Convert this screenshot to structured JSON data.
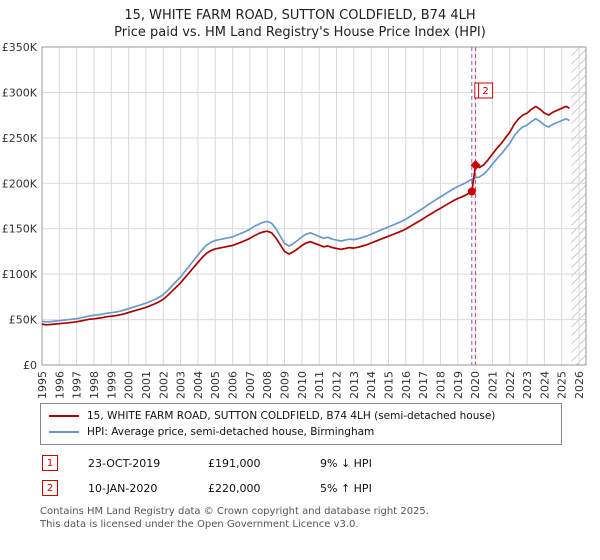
{
  "title": "15, WHITE FARM ROAD, SUTTON COLDFIELD, B74 4LH",
  "subtitle": "Price paid vs. HM Land Registry's House Price Index (HPI)",
  "legend": {
    "property": "15, WHITE FARM ROAD, SUTTON COLDFIELD, B74 4LH (semi-detached house)",
    "hpi": "HPI: Average price, semi-detached house, Birmingham"
  },
  "transactions": [
    {
      "num": "1",
      "date": "23-OCT-2019",
      "price": "£191,000",
      "hpi": "9% ↓ HPI"
    },
    {
      "num": "2",
      "date": "10-JAN-2020",
      "price": "£220,000",
      "hpi": "5% ↑ HPI"
    }
  ],
  "footer": {
    "line1": "Contains HM Land Registry data © Crown copyright and database right 2025.",
    "line2": "This data is licensed under the Open Government Licence v3.0."
  },
  "chart_data": {
    "type": "line",
    "title": "Price paid vs. HM Land Registry's House Price Index (HPI)",
    "units": "y values stored in GBP thousands",
    "xlim": [
      1995,
      2026.4
    ],
    "ylim": [
      0,
      350000
    ],
    "grid": true,
    "legend_position": "bottom",
    "hatch_start": 2025.55,
    "marker_color": "#cc0000",
    "x_ticks": [
      1995,
      1996,
      1997,
      1998,
      1999,
      2000,
      2001,
      2002,
      2003,
      2004,
      2005,
      2006,
      2007,
      2008,
      2009,
      2010,
      2011,
      2012,
      2013,
      2014,
      2015,
      2016,
      2017,
      2018,
      2019,
      2020,
      2021,
      2022,
      2023,
      2024,
      2025,
      2026
    ],
    "y_ticks": [
      {
        "value": 0,
        "label": "£0"
      },
      {
        "value": 50,
        "label": "£50K"
      },
      {
        "value": 100,
        "label": "£100K"
      },
      {
        "value": 150,
        "label": "£150K"
      },
      {
        "value": 200,
        "label": "£200K"
      },
      {
        "value": 250,
        "label": "£250K"
      },
      {
        "value": 300,
        "label": "£300K"
      },
      {
        "value": 350,
        "label": "£350K"
      }
    ],
    "markers": [
      {
        "label": "1",
        "x": 2019.81,
        "y": 191,
        "shape": "circle",
        "line_color": "#6666cc"
      },
      {
        "label": "2",
        "x": 2020.03,
        "y": 220,
        "shape": "diamond",
        "line_color": "#cc4466"
      }
    ],
    "series": [
      {
        "name": "HPI: Average price, semi-detached house, Birmingham",
        "color": "#6699cc",
        "points": [
          [
            1995,
            48
          ],
          [
            1995.25,
            47.5
          ],
          [
            1995.5,
            47.8
          ],
          [
            1995.75,
            48.3
          ],
          [
            1996,
            48.8
          ],
          [
            1996.25,
            49.3
          ],
          [
            1996.5,
            49.9
          ],
          [
            1996.75,
            50.4
          ],
          [
            1997,
            51
          ],
          [
            1997.25,
            52
          ],
          [
            1997.5,
            53
          ],
          [
            1997.75,
            54
          ],
          [
            1998,
            54.6
          ],
          [
            1998.25,
            55.2
          ],
          [
            1998.5,
            56
          ],
          [
            1998.75,
            57
          ],
          [
            1999,
            57.6
          ],
          [
            1999.25,
            58.2
          ],
          [
            1999.5,
            59.2
          ],
          [
            1999.75,
            60.5
          ],
          [
            2000,
            62
          ],
          [
            2000.25,
            63.5
          ],
          [
            2000.5,
            65
          ],
          [
            2000.75,
            66.5
          ],
          [
            2001,
            68
          ],
          [
            2001.25,
            70
          ],
          [
            2001.5,
            72
          ],
          [
            2001.75,
            74.5
          ],
          [
            2002,
            77.5
          ],
          [
            2002.25,
            82
          ],
          [
            2002.5,
            87
          ],
          [
            2002.75,
            92
          ],
          [
            2003,
            97
          ],
          [
            2003.25,
            103
          ],
          [
            2003.5,
            109
          ],
          [
            2003.75,
            115
          ],
          [
            2004,
            121
          ],
          [
            2004.25,
            127
          ],
          [
            2004.5,
            132
          ],
          [
            2004.75,
            135
          ],
          [
            2005,
            137
          ],
          [
            2005.25,
            138
          ],
          [
            2005.5,
            139
          ],
          [
            2005.75,
            140
          ],
          [
            2006,
            141
          ],
          [
            2006.25,
            143
          ],
          [
            2006.5,
            145
          ],
          [
            2006.75,
            147
          ],
          [
            2007,
            149.5
          ],
          [
            2007.25,
            152.5
          ],
          [
            2007.5,
            155
          ],
          [
            2007.75,
            157
          ],
          [
            2008,
            158
          ],
          [
            2008.25,
            156
          ],
          [
            2008.5,
            150
          ],
          [
            2008.75,
            142
          ],
          [
            2009,
            134
          ],
          [
            2009.25,
            131
          ],
          [
            2009.5,
            133.5
          ],
          [
            2009.75,
            137
          ],
          [
            2010,
            141
          ],
          [
            2010.25,
            144
          ],
          [
            2010.5,
            145.5
          ],
          [
            2010.75,
            143.5
          ],
          [
            2011,
            141.5
          ],
          [
            2011.25,
            139.5
          ],
          [
            2011.5,
            140.5
          ],
          [
            2011.75,
            138.5
          ],
          [
            2012,
            137.5
          ],
          [
            2012.25,
            136.5
          ],
          [
            2012.5,
            137.5
          ],
          [
            2012.75,
            138.5
          ],
          [
            2013,
            138
          ],
          [
            2013.25,
            139
          ],
          [
            2013.5,
            140.5
          ],
          [
            2013.75,
            142
          ],
          [
            2014,
            144
          ],
          [
            2014.25,
            146
          ],
          [
            2014.5,
            148
          ],
          [
            2014.75,
            150
          ],
          [
            2015,
            152
          ],
          [
            2015.25,
            154
          ],
          [
            2015.5,
            156
          ],
          [
            2015.75,
            158
          ],
          [
            2016,
            160.5
          ],
          [
            2016.25,
            163.5
          ],
          [
            2016.5,
            166.5
          ],
          [
            2016.75,
            169.5
          ],
          [
            2017,
            172.5
          ],
          [
            2017.25,
            176
          ],
          [
            2017.5,
            179
          ],
          [
            2017.75,
            182
          ],
          [
            2018,
            185
          ],
          [
            2018.25,
            188
          ],
          [
            2018.5,
            191
          ],
          [
            2018.75,
            194
          ],
          [
            2019,
            196.5
          ],
          [
            2019.25,
            198.5
          ],
          [
            2019.5,
            201
          ],
          [
            2019.75,
            204
          ],
          [
            2020,
            206
          ],
          [
            2020.25,
            207
          ],
          [
            2020.5,
            210
          ],
          [
            2020.75,
            215
          ],
          [
            2021,
            221
          ],
          [
            2021.25,
            227
          ],
          [
            2021.5,
            232
          ],
          [
            2021.75,
            238
          ],
          [
            2022,
            244
          ],
          [
            2022.25,
            252
          ],
          [
            2022.5,
            258
          ],
          [
            2022.75,
            262
          ],
          [
            2023,
            264
          ],
          [
            2023.25,
            268
          ],
          [
            2023.5,
            271
          ],
          [
            2023.75,
            268
          ],
          [
            2024,
            264
          ],
          [
            2024.25,
            262
          ],
          [
            2024.5,
            265
          ],
          [
            2024.75,
            267
          ],
          [
            2025,
            269
          ],
          [
            2025.25,
            271
          ],
          [
            2025.45,
            269
          ]
        ]
      },
      {
        "name": "15, WHITE FARM ROAD, SUTTON COLDFIELD, B74 4LH (semi-detached house)",
        "color": "#aa0000",
        "points": [
          [
            1995,
            45
          ],
          [
            1995.25,
            44.3
          ],
          [
            1995.5,
            44.6
          ],
          [
            1995.75,
            45.1
          ],
          [
            1996,
            45.5
          ],
          [
            1996.25,
            46
          ],
          [
            1996.5,
            46.5
          ],
          [
            1996.75,
            47
          ],
          [
            1997,
            47.6
          ],
          [
            1997.25,
            48.5
          ],
          [
            1997.5,
            49.4
          ],
          [
            1997.75,
            50.4
          ],
          [
            1998,
            50.9
          ],
          [
            1998.25,
            51.5
          ],
          [
            1998.5,
            52.2
          ],
          [
            1998.75,
            53.2
          ],
          [
            1999,
            53.7
          ],
          [
            1999.25,
            54.3
          ],
          [
            1999.5,
            55.2
          ],
          [
            1999.75,
            56.4
          ],
          [
            2000,
            57.8
          ],
          [
            2000.25,
            59.2
          ],
          [
            2000.5,
            60.6
          ],
          [
            2000.75,
            62
          ],
          [
            2001,
            63.4
          ],
          [
            2001.25,
            65.3
          ],
          [
            2001.5,
            67.2
          ],
          [
            2001.75,
            69.5
          ],
          [
            2002,
            72.3
          ],
          [
            2002.25,
            76.5
          ],
          [
            2002.5,
            81.1
          ],
          [
            2002.75,
            85.8
          ],
          [
            2003,
            90.5
          ],
          [
            2003.25,
            96.1
          ],
          [
            2003.5,
            101.7
          ],
          [
            2003.75,
            107.2
          ],
          [
            2004,
            112.9
          ],
          [
            2004.25,
            118.4
          ],
          [
            2004.5,
            123.1
          ],
          [
            2004.75,
            125.9
          ],
          [
            2005,
            127.8
          ],
          [
            2005.25,
            128.7
          ],
          [
            2005.5,
            129.6
          ],
          [
            2005.75,
            130.6
          ],
          [
            2006,
            131.5
          ],
          [
            2006.25,
            133.4
          ],
          [
            2006.5,
            135.2
          ],
          [
            2006.75,
            137.1
          ],
          [
            2007,
            139.4
          ],
          [
            2007.25,
            142.2
          ],
          [
            2007.5,
            144.6
          ],
          [
            2007.75,
            146.4
          ],
          [
            2008,
            147.3
          ],
          [
            2008.25,
            145.5
          ],
          [
            2008.5,
            139.9
          ],
          [
            2008.75,
            132.4
          ],
          [
            2009,
            125
          ],
          [
            2009.25,
            122.2
          ],
          [
            2009.5,
            124.5
          ],
          [
            2009.75,
            127.8
          ],
          [
            2010,
            131.5
          ],
          [
            2010.25,
            134.3
          ],
          [
            2010.5,
            135.7
          ],
          [
            2010.75,
            133.8
          ],
          [
            2011,
            132
          ],
          [
            2011.25,
            130.1
          ],
          [
            2011.5,
            131
          ],
          [
            2011.75,
            129.2
          ],
          [
            2012,
            128.2
          ],
          [
            2012.25,
            127.3
          ],
          [
            2012.5,
            128.2
          ],
          [
            2012.75,
            129.2
          ],
          [
            2013,
            128.7
          ],
          [
            2013.25,
            129.6
          ],
          [
            2013.5,
            131
          ],
          [
            2013.75,
            132.4
          ],
          [
            2014,
            134.3
          ],
          [
            2014.25,
            136.2
          ],
          [
            2014.5,
            138
          ],
          [
            2014.75,
            139.9
          ],
          [
            2015,
            141.8
          ],
          [
            2015.25,
            143.6
          ],
          [
            2015.5,
            145.5
          ],
          [
            2015.75,
            147.4
          ],
          [
            2016,
            149.7
          ],
          [
            2016.25,
            152.5
          ],
          [
            2016.5,
            155.3
          ],
          [
            2016.75,
            158.1
          ],
          [
            2017,
            160.9
          ],
          [
            2017.25,
            164.1
          ],
          [
            2017.5,
            166.9
          ],
          [
            2017.75,
            169.8
          ],
          [
            2018,
            172.5
          ],
          [
            2018.25,
            175.3
          ],
          [
            2018.5,
            178.1
          ],
          [
            2018.75,
            180.9
          ],
          [
            2019,
            183.3
          ],
          [
            2019.25,
            185.1
          ],
          [
            2019.5,
            187.4
          ],
          [
            2019.81,
            191
          ],
          [
            2020.03,
            220
          ],
          [
            2020.25,
            217.4
          ],
          [
            2020.5,
            220.5
          ],
          [
            2020.75,
            225.8
          ],
          [
            2021,
            232.1
          ],
          [
            2021.25,
            238.4
          ],
          [
            2021.5,
            243.6
          ],
          [
            2021.75,
            249.9
          ],
          [
            2022,
            256.2
          ],
          [
            2022.25,
            264.6
          ],
          [
            2022.5,
            270.9
          ],
          [
            2022.75,
            275.1
          ],
          [
            2023,
            277.2
          ],
          [
            2023.25,
            281.4
          ],
          [
            2023.5,
            284.6
          ],
          [
            2023.75,
            281.4
          ],
          [
            2024,
            277.2
          ],
          [
            2024.25,
            275.1
          ],
          [
            2024.5,
            278.3
          ],
          [
            2024.75,
            280.4
          ],
          [
            2025,
            282.5
          ],
          [
            2025.25,
            284.6
          ],
          [
            2025.45,
            282.5
          ]
        ]
      }
    ]
  }
}
